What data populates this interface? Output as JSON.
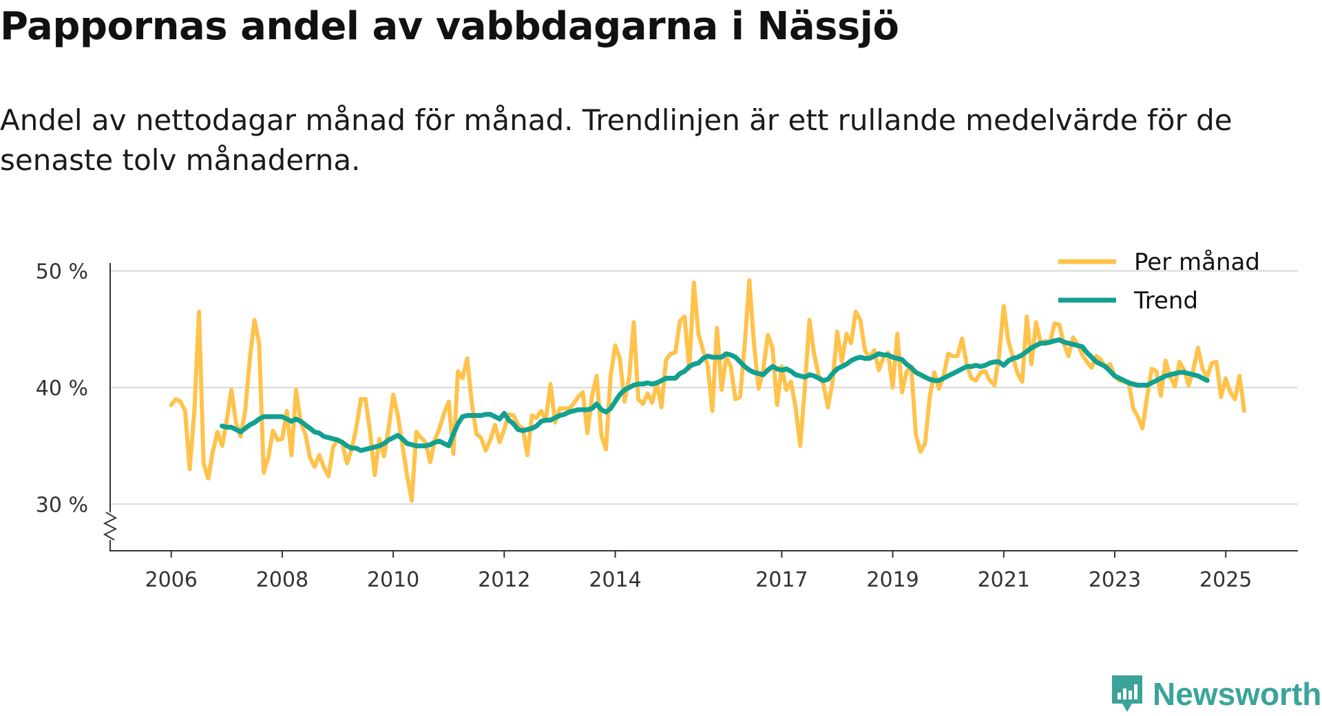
{
  "title": "Pappornas andel av vabbdagarna i Nässjö",
  "subtitle": "Andel av nettodagar månad för månad. Trendlinjen är ett rullande medelvärde för de senaste tolv månaderna.",
  "brand": {
    "name": "Newsworthy",
    "icon": "newsworthy-logo-icon",
    "color": "#3aa39a"
  },
  "chart_data": {
    "type": "line",
    "title": "Pappornas andel av vabbdagarna i Nässjö",
    "xlabel": "",
    "ylabel": "",
    "unit": "%",
    "ylim": [
      26,
      50.8
    ],
    "xlim": [
      2004.9,
      2026.3
    ],
    "yticks": [
      30,
      40,
      50
    ],
    "ytick_labels": [
      "30 %",
      "40 %",
      "50 %"
    ],
    "xticks": [
      2006,
      2008,
      2010,
      2012,
      2014,
      2017,
      2019,
      2021,
      2023,
      2025
    ],
    "xtick_labels": [
      "2006",
      "2008",
      "2010",
      "2012",
      "2014",
      "2017",
      "2019",
      "2021",
      "2023",
      "2025"
    ],
    "grid": true,
    "axis_break": true,
    "legend_position": "top-right",
    "series": [
      {
        "name": "Per månad",
        "color": "#ffc24b",
        "x_start": 2006.0,
        "x_step": 0.08333,
        "values": [
          38.5,
          39.0,
          38.8,
          38.0,
          33.0,
          38.0,
          46.5,
          33.5,
          32.2,
          34.5,
          36.2,
          35.0,
          37.2,
          39.8,
          37.0,
          35.8,
          38.0,
          42.5,
          45.8,
          43.8,
          32.7,
          34.0,
          36.3,
          35.5,
          35.6,
          38.0,
          34.2,
          39.8,
          37.0,
          36.0,
          34.0,
          33.2,
          34.2,
          33.2,
          32.4,
          34.9,
          35.5,
          35.2,
          33.5,
          34.7,
          36.5,
          39.0,
          39.0,
          36.2,
          32.5,
          35.6,
          34.1,
          36.5,
          39.4,
          37.6,
          35.0,
          32.5,
          30.3,
          36.2,
          35.7,
          35.3,
          33.6,
          35.5,
          36.5,
          37.8,
          38.8,
          34.3,
          41.4,
          40.8,
          42.5,
          38.6,
          36.0,
          35.7,
          34.6,
          35.5,
          36.8,
          35.3,
          36.4,
          37.7,
          37.6,
          36.8,
          36.5,
          34.2,
          37.6,
          37.4,
          38.0,
          37.2,
          40.3,
          37.0,
          38.2,
          38.2,
          38.2,
          38.6,
          39.2,
          39.6,
          36.1,
          39.3,
          41.0,
          35.9,
          34.7,
          41.0,
          43.6,
          42.5,
          38.8,
          40.8,
          45.6,
          39.0,
          38.6,
          39.5,
          38.7,
          40.4,
          38.3,
          42.4,
          42.9,
          43.0,
          45.7,
          46.1,
          41.6,
          49.0,
          44.6,
          43.2,
          41.9,
          38.0,
          45.1,
          39.8,
          42.6,
          41.8,
          39.0,
          39.2,
          43.7,
          49.2,
          43.8,
          39.9,
          41.5,
          44.5,
          43.4,
          38.5,
          41.8,
          39.8,
          40.5,
          38.3,
          35.0,
          40.0,
          45.8,
          42.9,
          41.0,
          40.3,
          38.3,
          40.5,
          44.8,
          42.2,
          44.6,
          43.8,
          46.5,
          45.8,
          43.2,
          42.5,
          43.2,
          41.5,
          42.6,
          43.0,
          40.0,
          44.6,
          39.6,
          41.4,
          41.8,
          36.0,
          34.5,
          35.2,
          39.2,
          41.3,
          39.9,
          41.0,
          42.9,
          42.7,
          42.7,
          44.2,
          42.0,
          40.8,
          40.6,
          41.3,
          41.4,
          40.6,
          40.2,
          42.7,
          47.0,
          44.0,
          42.6,
          41.2,
          40.5,
          46.1,
          42.0,
          45.6,
          43.8,
          44.0,
          43.8,
          45.5,
          45.4,
          43.8,
          42.7,
          44.3,
          43.7,
          42.8,
          42.2,
          41.7,
          42.7,
          42.4,
          41.7,
          42.0,
          41.0,
          40.6,
          40.5,
          40.5,
          38.2,
          37.5,
          36.5,
          39.2,
          41.6,
          41.4,
          39.3,
          42.3,
          40.9,
          40.1,
          42.2,
          41.5,
          40.2,
          41.5,
          43.4,
          41.6,
          40.9,
          42.1,
          42.2,
          39.2,
          40.8,
          39.6,
          39.0,
          41.0,
          38.0
        ]
      },
      {
        "name": "Trend",
        "color": "#12a090",
        "x_start": 2006.9167,
        "x_step": 0.08333,
        "values": [
          36.7,
          36.6,
          36.6,
          36.4,
          36.2,
          36.5,
          36.8,
          37.0,
          37.3,
          37.5,
          37.5,
          37.5,
          37.5,
          37.5,
          37.3,
          37.1,
          37.3,
          37.1,
          36.8,
          36.5,
          36.2,
          36.1,
          35.8,
          35.7,
          35.6,
          35.5,
          35.3,
          35.0,
          34.8,
          34.8,
          34.6,
          34.7,
          34.8,
          34.9,
          35.0,
          35.2,
          35.5,
          35.7,
          35.9,
          35.6,
          35.2,
          35.1,
          35.0,
          35.0,
          35.0,
          35.1,
          35.3,
          35.4,
          35.2,
          35.0,
          36.0,
          36.9,
          37.5,
          37.6,
          37.6,
          37.6,
          37.6,
          37.7,
          37.7,
          37.5,
          37.3,
          37.8,
          37.2,
          36.9,
          36.4,
          36.3,
          36.4,
          36.5,
          36.7,
          37.1,
          37.2,
          37.2,
          37.4,
          37.6,
          37.7,
          37.9,
          38.0,
          38.1,
          38.1,
          38.1,
          38.2,
          38.6,
          38.1,
          37.9,
          38.2,
          38.8,
          39.4,
          39.8,
          40.0,
          40.2,
          40.3,
          40.3,
          40.4,
          40.3,
          40.4,
          40.6,
          40.8,
          40.8,
          40.8,
          41.2,
          41.4,
          41.8,
          42.0,
          42.1,
          42.5,
          42.7,
          42.6,
          42.6,
          42.6,
          42.9,
          42.8,
          42.6,
          42.2,
          41.8,
          41.5,
          41.3,
          41.2,
          41.1,
          41.5,
          41.8,
          41.6,
          41.5,
          41.6,
          41.4,
          41.1,
          41.0,
          40.9,
          41.1,
          41.0,
          40.8,
          40.6,
          40.7,
          41.2,
          41.6,
          41.8,
          42.0,
          42.3,
          42.5,
          42.6,
          42.5,
          42.5,
          42.7,
          42.9,
          42.8,
          42.8,
          42.6,
          42.5,
          42.4,
          42.0,
          41.7,
          41.3,
          41.1,
          40.9,
          40.7,
          40.6,
          40.6,
          40.8,
          41.0,
          41.2,
          41.4,
          41.6,
          41.8,
          41.8,
          41.9,
          41.8,
          41.9,
          42.1,
          42.2,
          42.2,
          41.9,
          42.3,
          42.5,
          42.6,
          42.8,
          43.1,
          43.4,
          43.6,
          43.8,
          43.8,
          43.9,
          44.0,
          44.1,
          43.9,
          43.8,
          43.7,
          43.6,
          43.5,
          43.0,
          42.6,
          42.2,
          42.0,
          41.8,
          41.4,
          41.0,
          40.8,
          40.6,
          40.4,
          40.3,
          40.2,
          40.2,
          40.2,
          40.4,
          40.6,
          40.8,
          41.0,
          41.1,
          41.2,
          41.3,
          41.3,
          41.2,
          41.1,
          41.0,
          40.8,
          40.6
        ]
      }
    ]
  }
}
